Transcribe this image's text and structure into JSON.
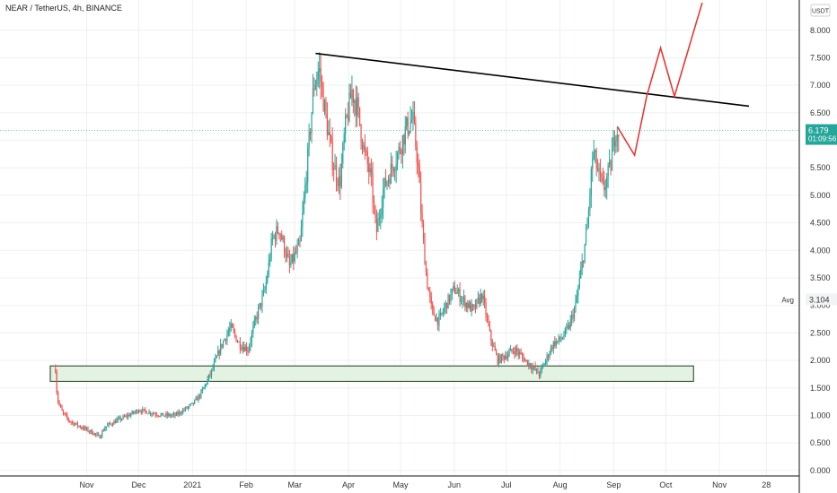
{
  "header": {
    "title": "NEAR / TetherUS, 4h, BINANCE",
    "currency_button": "USDT"
  },
  "price_tag": {
    "price": "6.179",
    "countdown": "01:09:56",
    "value": 6.179,
    "color": "#26a69a"
  },
  "avg_tag": {
    "label": "Avg",
    "value_text": "3.104",
    "value": 3.104
  },
  "colors": {
    "up": "#26a69a",
    "down": "#ef5350",
    "trendline": "#000000",
    "projection": "#e53935",
    "zone_fill": "#e3f2e3",
    "zone_stroke": "#1b3a1b",
    "grid": "#eef0f3"
  },
  "chart_data": {
    "type": "candlestick",
    "y_axis": {
      "ticks": [
        "8.000",
        "7.500",
        "7.000",
        "6.500",
        "6.000",
        "5.500",
        "5.000",
        "4.500",
        "4.000",
        "3.500",
        "3.000",
        "2.500",
        "2.000",
        "1.500",
        "1.000",
        "0.500",
        "0.000"
      ],
      "tick_values": [
        8,
        7.5,
        7,
        6.5,
        6,
        5.5,
        5,
        4.5,
        4,
        3.5,
        3,
        2.5,
        2,
        1.5,
        1,
        0.5,
        0
      ],
      "range": [
        -0.1,
        8.55
      ]
    },
    "x_axis": {
      "labels": [
        "Nov",
        "Dec",
        "2021",
        "Feb",
        "Mar",
        "Apr",
        "May",
        "Jun",
        "Jul",
        "Aug",
        "Sep",
        "Oct",
        "Nov",
        "28"
      ],
      "label_dates": [
        "2020-11-01",
        "2020-12-01",
        "2021-01-01",
        "2021-02-01",
        "2021-03-01",
        "2021-04-01",
        "2021-05-01",
        "2021-06-01",
        "2021-07-01",
        "2021-08-01",
        "2021-09-01",
        "2021-10-01",
        "2021-11-01",
        "2021-11-28"
      ],
      "range": [
        "2020-09-12",
        "2021-12-17"
      ]
    },
    "price_path": [
      [
        "2020-10-14",
        1.85
      ],
      [
        "2020-10-15",
        1.3
      ],
      [
        "2020-10-18",
        1.05
      ],
      [
        "2020-10-22",
        0.9
      ],
      [
        "2020-10-28",
        0.8
      ],
      [
        "2020-11-05",
        0.68
      ],
      [
        "2020-11-08",
        0.6
      ],
      [
        "2020-11-12",
        0.8
      ],
      [
        "2020-11-18",
        0.9
      ],
      [
        "2020-11-25",
        1.0
      ],
      [
        "2020-12-01",
        1.1
      ],
      [
        "2020-12-08",
        1.05
      ],
      [
        "2020-12-15",
        1.0
      ],
      [
        "2020-12-22",
        1.0
      ],
      [
        "2020-12-27",
        1.1
      ],
      [
        "2021-01-01",
        1.2
      ],
      [
        "2021-01-06",
        1.4
      ],
      [
        "2021-01-12",
        1.8
      ],
      [
        "2021-01-18",
        2.3
      ],
      [
        "2021-01-23",
        2.6
      ],
      [
        "2021-01-28",
        2.3
      ],
      [
        "2021-02-02",
        2.2
      ],
      [
        "2021-02-07",
        2.8
      ],
      [
        "2021-02-12",
        3.3
      ],
      [
        "2021-02-16",
        4.2
      ],
      [
        "2021-02-20",
        4.4
      ],
      [
        "2021-02-26",
        3.7
      ],
      [
        "2021-03-04",
        4.1
      ],
      [
        "2021-03-08",
        5.5
      ],
      [
        "2021-03-12",
        7.0
      ],
      [
        "2021-03-15",
        7.3
      ],
      [
        "2021-03-19",
        6.4
      ],
      [
        "2021-03-23",
        5.6
      ],
      [
        "2021-03-27",
        5.2
      ],
      [
        "2021-03-30",
        6.2
      ],
      [
        "2021-04-03",
        6.9
      ],
      [
        "2021-04-06",
        6.6
      ],
      [
        "2021-04-10",
        5.8
      ],
      [
        "2021-04-14",
        5.3
      ],
      [
        "2021-04-17",
        4.3
      ],
      [
        "2021-04-21",
        5.1
      ],
      [
        "2021-04-26",
        5.5
      ],
      [
        "2021-04-30",
        5.8
      ],
      [
        "2021-05-04",
        6.2
      ],
      [
        "2021-05-08",
        6.4
      ],
      [
        "2021-05-11",
        5.6
      ],
      [
        "2021-05-13",
        4.6
      ],
      [
        "2021-05-16",
        3.5
      ],
      [
        "2021-05-19",
        2.9
      ],
      [
        "2021-05-23",
        2.7
      ],
      [
        "2021-05-27",
        3.0
      ],
      [
        "2021-06-01",
        3.3
      ],
      [
        "2021-06-06",
        3.1
      ],
      [
        "2021-06-12",
        2.9
      ],
      [
        "2021-06-17",
        3.2
      ],
      [
        "2021-06-22",
        2.4
      ],
      [
        "2021-06-26",
        2.0
      ],
      [
        "2021-07-01",
        2.1
      ],
      [
        "2021-07-06",
        2.2
      ],
      [
        "2021-07-12",
        2.0
      ],
      [
        "2021-07-17",
        1.85
      ],
      [
        "2021-07-20",
        1.75
      ],
      [
        "2021-07-23",
        1.95
      ],
      [
        "2021-07-28",
        2.3
      ],
      [
        "2021-08-02",
        2.4
      ],
      [
        "2021-08-06",
        2.6
      ],
      [
        "2021-08-10",
        3.0
      ],
      [
        "2021-08-14",
        3.8
      ],
      [
        "2021-08-17",
        4.5
      ],
      [
        "2021-08-20",
        5.8
      ],
      [
        "2021-08-23",
        5.4
      ],
      [
        "2021-08-26",
        5.1
      ],
      [
        "2021-08-30",
        5.5
      ],
      [
        "2021-09-02",
        6.2
      ],
      [
        "2021-09-04",
        6.18
      ]
    ],
    "trendline": {
      "from": [
        "2021-03-13",
        7.58
      ],
      "to": [
        "2021-11-18",
        6.62
      ]
    },
    "support_zone": {
      "x_from": "2020-10-11",
      "x_to": "2021-10-17",
      "y_low": 1.62,
      "y_high": 1.9
    },
    "projection_path": [
      [
        "2021-09-03",
        6.25
      ],
      [
        "2021-09-13",
        5.73
      ],
      [
        "2021-09-20",
        6.8
      ],
      [
        "2021-09-28",
        7.68
      ],
      [
        "2021-10-06",
        6.8
      ],
      [
        "2021-10-22",
        8.5
      ]
    ],
    "last_price": 6.179,
    "avg_price": 3.104
  }
}
